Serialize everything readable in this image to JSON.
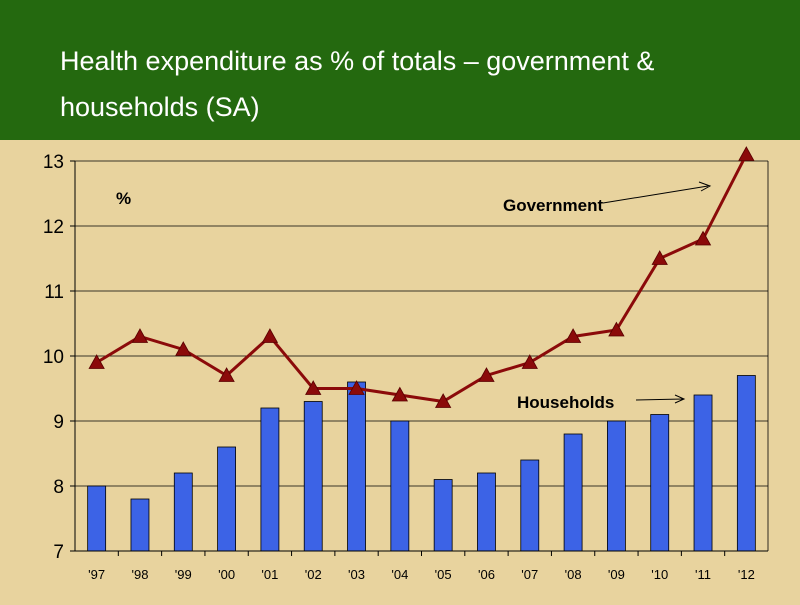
{
  "slide": {
    "title": "Health expenditure as % of totals – government & households (SA)"
  },
  "colors": {
    "header_bg": "#24690f",
    "chart_bg": "#e8d39e",
    "bar_fill": "#3c63e6",
    "line_color": "#8b0a0a"
  },
  "chart_data": {
    "type": "bar",
    "title": "",
    "xlabel": "",
    "ylabel": "%",
    "ylim": [
      7,
      13
    ],
    "yticks": [
      7,
      8,
      9,
      10,
      11,
      12,
      13
    ],
    "grid": true,
    "categories": [
      "'97",
      "'98",
      "'99",
      "'00",
      "'01",
      "'02",
      "'03",
      "'04",
      "'05",
      "'06",
      "'07",
      "'08",
      "'09",
      "'10",
      "'11",
      "'12"
    ],
    "series": [
      {
        "name": "Households",
        "type": "bar",
        "values": [
          8.0,
          7.8,
          8.2,
          8.6,
          9.2,
          9.3,
          9.6,
          9.0,
          8.1,
          8.2,
          8.4,
          8.8,
          9.0,
          9.1,
          9.4,
          9.7
        ]
      },
      {
        "name": "Government",
        "type": "line",
        "marker": "triangle",
        "values": [
          9.9,
          10.3,
          10.1,
          9.7,
          10.3,
          9.5,
          9.5,
          9.4,
          9.3,
          9.7,
          9.9,
          10.3,
          10.4,
          11.5,
          11.8,
          13.1
        ]
      }
    ],
    "annotations": [
      "Government",
      "Households"
    ]
  }
}
